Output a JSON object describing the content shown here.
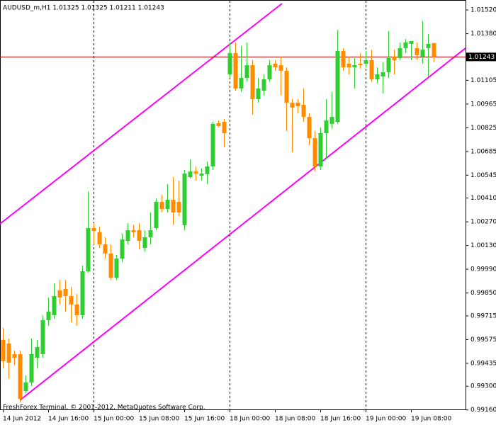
{
  "chart_data": {
    "type": "candlestick",
    "title": "AUDUSD_m,H1  1.01325 1.01325 1.01211 1.01243",
    "footer": "FreshForex Terminal, © 2001-2012, MetaQuotes Software Corp.",
    "up_color": "#32cd32",
    "down_color": "#ff8c00",
    "categories": [
      "14 Jun 2012",
      null,
      null,
      null,
      null,
      null,
      null,
      null,
      "14 Jun 16:00",
      null,
      null,
      null,
      null,
      null,
      null,
      null,
      "15 Jun 00:00",
      null,
      null,
      null,
      null,
      null,
      null,
      null,
      "15 Jun 08:00",
      null,
      null,
      null,
      null,
      null,
      null,
      null,
      "15 Jun 16:00",
      null,
      null,
      null,
      null,
      null,
      null,
      null,
      "18 Jun 00:00",
      null,
      null,
      null,
      null,
      null,
      null,
      null,
      "18 Jun 08:00",
      null,
      null,
      null,
      null,
      null,
      null,
      null,
      "18 Jun 16:00",
      null,
      null,
      null,
      null,
      null,
      null,
      null,
      "19 Jun 00:00",
      null,
      null,
      null,
      null,
      null,
      null,
      null,
      "19 Jun 08:00",
      null,
      null,
      null,
      null
    ],
    "open": [
      0.99573,
      0.99552,
      0.99489,
      0.99489,
      0.99272,
      0.99322,
      0.99468,
      0.99489,
      0.9969,
      0.99719,
      0.99865,
      0.99874,
      0.99832,
      0.99782,
      0.99719,
      0.99978,
      1.00233,
      1.00209,
      1.00137,
      1.00083,
      0.9994,
      1.00053,
      1.00158,
      1.00221,
      1.00221,
      1.00116,
      1.00179,
      1.00233,
      1.00388,
      1.00346,
      1.004,
      1.00388,
      1.0025,
      1.00534,
      1.00567,
      1.00542,
      1.00551,
      1.00597,
      1.00852,
      1.0086,
      1.0114,
      1.01266,
      1.01057,
      1.01119,
      1.01194,
      1.00994,
      1.01044,
      1.01111,
      1.01203,
      1.01194,
      1.01161,
      1.00973,
      1.00973,
      1.0096,
      1.00889,
      1.00764,
      1.00597,
      1.00793,
      1.00848,
      1.0086,
      1.01278,
      1.01203,
      1.01182,
      1.01203,
      1.01203,
      1.01224,
      1.01111,
      1.01128,
      1.01153,
      1.01245,
      1.01236,
      1.01295,
      1.0132,
      1.01295,
      1.01245,
      1.01295,
      1.01325
    ],
    "high": [
      0.99644,
      0.99581,
      0.9951,
      0.9951,
      0.99364,
      0.99581,
      0.99573,
      0.99719,
      0.99823,
      0.99907,
      0.99928,
      0.99928,
      0.99886,
      0.99844,
      1.00012,
      1.0045,
      1.00262,
      1.00241,
      1.00179,
      1.00137,
      1.00074,
      1.002,
      1.00262,
      1.0025,
      1.00262,
      1.00221,
      1.00325,
      1.00409,
      1.0043,
      1.00492,
      1.00534,
      1.00513,
      1.00576,
      1.00639,
      1.00597,
      1.00584,
      1.00626,
      1.0086,
      1.00868,
      1.00877,
      1.01328,
      1.01328,
      1.01307,
      1.01328,
      1.01224,
      1.01119,
      1.0114,
      1.01224,
      1.01224,
      1.01245,
      1.01182,
      1.00994,
      1.00994,
      1.01057,
      1.0091,
      1.00806,
      1.00827,
      1.00994,
      1.01036,
      1.01403,
      1.01295,
      1.01245,
      1.01236,
      1.01266,
      1.01278,
      1.01286,
      1.01182,
      1.01211,
      1.01395,
      1.01286,
      1.01328,
      1.01349,
      1.01337,
      1.01328,
      1.01454,
      1.01378,
      1.01325
    ],
    "low": [
      0.99405,
      0.99343,
      0.99426,
      0.99205,
      0.99259,
      0.99301,
      0.99405,
      0.99468,
      0.99656,
      0.99698,
      0.99782,
      0.9974,
      0.99677,
      0.99656,
      0.99698,
      0.9997,
      1.00137,
      1.00116,
      1.00053,
      0.99928,
      0.99928,
      1.00032,
      1.00137,
      1.00179,
      1.00108,
      1.00095,
      1.00137,
      1.00221,
      1.00325,
      1.00325,
      1.0025,
      1.00304,
      1.00221,
      1.00526,
      1.00513,
      1.00513,
      1.00492,
      1.00576,
      1.00827,
      1.0071,
      1.01119,
      1.01044,
      1.01036,
      1.01098,
      1.00902,
      1.00973,
      1.01015,
      1.01098,
      1.01161,
      1.01015,
      1.00806,
      1.0068,
      1.0091,
      1.0086,
      1.00722,
      1.00567,
      1.00576,
      1.00639,
      1.00819,
      1.00848,
      1.01161,
      1.0114,
      1.01057,
      1.01174,
      1.01182,
      1.01098,
      1.01086,
      1.01027,
      1.01119,
      1.0114,
      1.01224,
      1.01266,
      1.01224,
      1.01224,
      1.01203,
      1.01128,
      1.01211
    ],
    "close": [
      0.99447,
      0.99439,
      0.99468,
      0.99226,
      0.99322,
      0.99489,
      0.99531,
      0.9969,
      0.9974,
      0.99832,
      0.99823,
      0.99832,
      0.99782,
      0.99719,
      0.99978,
      1.00233,
      1.00216,
      1.00137,
      1.00083,
      0.9994,
      1.00053,
      1.00166,
      1.00221,
      1.00209,
      1.00158,
      1.00179,
      1.00221,
      1.00388,
      1.00346,
      1.004,
      1.00325,
      1.00325,
      1.00555,
      1.00567,
      1.00555,
      1.00555,
      1.00597,
      1.00848,
      1.00835,
      1.00793,
      1.01266,
      1.01057,
      1.01119,
      1.01194,
      1.00994,
      1.01057,
      1.01111,
      1.01194,
      1.01182,
      1.01161,
      1.00973,
      1.00944,
      1.00952,
      1.00889,
      1.00764,
      1.00597,
      1.00793,
      1.00868,
      1.00889,
      1.01278,
      1.01182,
      1.01182,
      1.01194,
      1.01194,
      1.01224,
      1.01111,
      1.0114,
      1.01153,
      1.01236,
      1.01224,
      1.01295,
      1.01328,
      1.01337,
      1.01253,
      1.01286,
      1.0132,
      1.01243
    ],
    "channel_lines": [
      {
        "color": "#ff00ff",
        "x": [
          -0.5,
          49.25
        ],
        "y": [
          1.00258,
          1.01558
        ]
      },
      {
        "color": "#ff00ff",
        "x": [
          3,
          81.625
        ],
        "y": [
          0.99217,
          1.01295
        ]
      }
    ],
    "price_line": 1.01243,
    "ylim": [
      0.99163,
      1.01558
    ],
    "yticks": [
      {
        "value": 1.0152,
        "label": "1.01520"
      },
      {
        "value": 1.0138,
        "label": "1.01380"
      },
      1.01105,
      1.00965,
      1.00825,
      1.00685,
      1.00545,
      {
        "value": 1.0041,
        "label": "1.00410"
      },
      {
        "value": 1.0027,
        "label": "1.00270"
      },
      {
        "value": 1.0013,
        "label": "1.00130"
      },
      {
        "value": 0.9999,
        "label": "0.99990"
      },
      {
        "value": 0.9985,
        "label": "0.99850"
      },
      0.99715,
      0.99575,
      0.99435,
      {
        "value": 0.993,
        "label": "0.99300"
      },
      {
        "value": 0.9916,
        "label": "0.99160"
      }
    ]
  }
}
